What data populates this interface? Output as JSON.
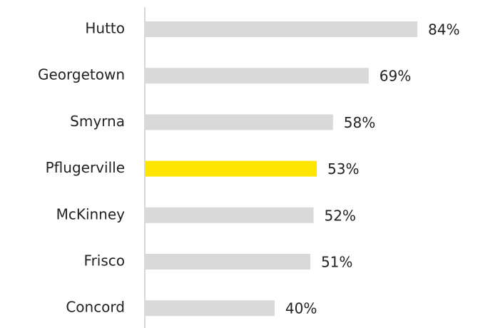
{
  "chart_data": {
    "type": "bar",
    "orientation": "horizontal",
    "categories": [
      "Hutto",
      "Georgetown",
      "Smyrna",
      "Pflugerville",
      "McKinney",
      "Frisco",
      "Concord"
    ],
    "values": [
      84,
      69,
      58,
      53,
      52,
      51,
      40
    ],
    "value_labels": [
      "84%",
      "69%",
      "58%",
      "53%",
      "52%",
      "51%",
      "40%"
    ],
    "colors": [
      "#d9d9d9",
      "#d9d9d9",
      "#d9d9d9",
      "#ffe600",
      "#d9d9d9",
      "#d9d9d9",
      "#d9d9d9"
    ]
  }
}
